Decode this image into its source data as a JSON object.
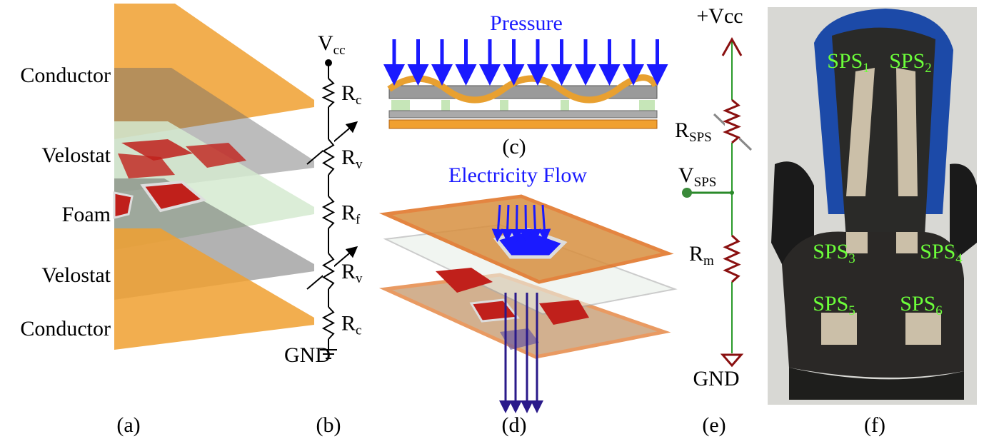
{
  "panel_labels": [
    "(a)",
    "(b)",
    "(c)",
    "(d)",
    "(e)",
    "(f)"
  ],
  "layers": [
    "Conductor",
    "Velostat",
    "Foam",
    "Velostat",
    "Conductor"
  ],
  "circuit_b": {
    "supply": {
      "main": "V",
      "sub": "cc"
    },
    "resistors": [
      {
        "main": "R",
        "sub": "c"
      },
      {
        "main": "R",
        "sub": "v"
      },
      {
        "main": "R",
        "sub": "f"
      },
      {
        "main": "R",
        "sub": "v"
      },
      {
        "main": "R",
        "sub": "c"
      }
    ],
    "ground": "GND"
  },
  "panel_c": {
    "title": "Pressure"
  },
  "panel_d": {
    "title": "Electricity Flow"
  },
  "circuit_e": {
    "supply": "+Vcc",
    "sensor": {
      "main": "R",
      "sub": "SPS"
    },
    "output": {
      "main": "V",
      "sub": "SPS"
    },
    "reference": {
      "main": "R",
      "sub": "m"
    },
    "ground": "GND"
  },
  "sensors": [
    {
      "main": "SPS",
      "sub": "1"
    },
    {
      "main": "SPS",
      "sub": "2"
    },
    {
      "main": "SPS",
      "sub": "3"
    },
    {
      "main": "SPS",
      "sub": "4"
    },
    {
      "main": "SPS",
      "sub": "5"
    },
    {
      "main": "SPS",
      "sub": "6"
    }
  ]
}
